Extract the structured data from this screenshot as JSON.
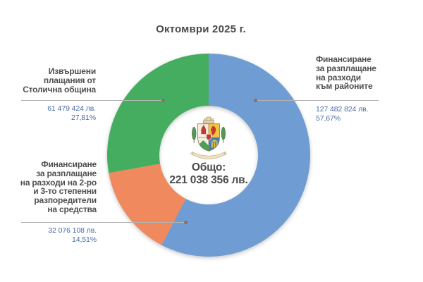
{
  "title": "Октомври 2025 г.",
  "donut_center": {
    "label": "Общо:",
    "total": "221 038 356 лв."
  },
  "emblem": {
    "name": "sofia-coat-of-arms"
  },
  "chart_data": {
    "type": "donut",
    "title": "Октомври 2025 г.",
    "center_label": "Общо:",
    "center_total_text": "221 038 356 лв.",
    "total_value": 221038356,
    "unit": "лв.",
    "start_angle_deg": 0,
    "direction": "clockwise",
    "inner_radius_ratio": 0.49,
    "legend_position": "outside-callouts",
    "segments": [
      {
        "id": "rayoni",
        "label": "Финансиране\nза разплащане\nна разходи\nкъм районите",
        "value": 127482824,
        "amount_text": "127 482 824 лв.",
        "percent": 57.67,
        "percent_text": "57,67%",
        "color": "#6f9cd2",
        "label_side": "right"
      },
      {
        "id": "stepenni",
        "label": "Финансиране\nза разплащане\nна разходи на 2-ро\nи 3-то степенни\nразпоредители\nна средства",
        "value": 32076108,
        "amount_text": "32 076 108 лв.",
        "percent": 14.51,
        "percent_text": "14,51%",
        "color": "#f08a5e",
        "label_side": "bottom-left"
      },
      {
        "id": "stolichna",
        "label": "Извършени\nплащания от\nСтолична община",
        "value": 61479424,
        "amount_text": "61 479 424 лв.",
        "percent": 27.81,
        "percent_text": "27,81%",
        "color": "#45ad60",
        "label_side": "top-left"
      }
    ]
  }
}
